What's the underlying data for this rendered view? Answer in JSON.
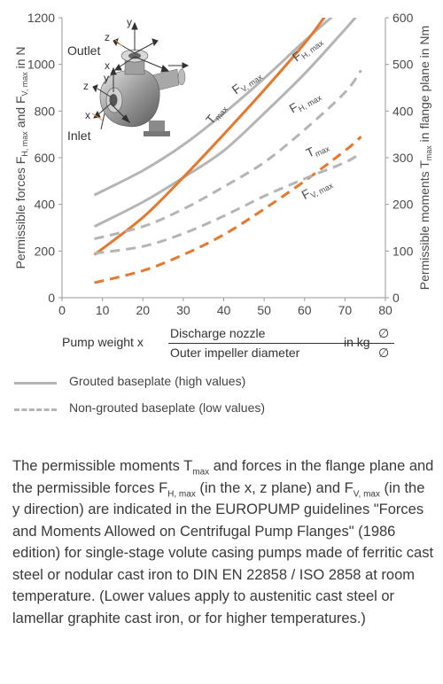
{
  "chart_data": {
    "type": "line",
    "xlim": [
      0,
      80
    ],
    "x_ticks": [
      0,
      10,
      20,
      30,
      40,
      50,
      60,
      70,
      80
    ],
    "y_left": {
      "lim": [
        0,
        1200
      ],
      "ticks": [
        0,
        200,
        400,
        600,
        800,
        1000,
        1200
      ]
    },
    "y_right": {
      "lim": [
        0,
        600
      ],
      "ticks": [
        0,
        100,
        200,
        300,
        400,
        500,
        600
      ]
    },
    "ylabel_left": {
      "main": "Permissible forces F",
      "sub1": "H, max",
      "mid": " and F",
      "sub2": "V, max",
      "end": " in N"
    },
    "ylabel_right": {
      "main": "Permissible moments T",
      "sub": "max",
      "end": " in flange plane in Nm"
    },
    "xlabel": {
      "prefix": "Pump weight  x",
      "numerator": "Discharge nozzle",
      "denominator": "Outer impeller diameter",
      "symbol_top": "∅",
      "symbol_bottom": "∅",
      "unit": "in kg"
    },
    "series": [
      {
        "group": "grouted",
        "label_main": "F",
        "label_sub": "V, max",
        "color": "#b5b5b5",
        "dash": false,
        "axis": "left",
        "x": [
          8,
          20,
          30,
          40,
          50,
          60,
          68,
          75
        ],
        "y": [
          440,
          545,
          655,
          790,
          940,
          1100,
          1220,
          1300
        ]
      },
      {
        "group": "grouted",
        "label_main": "F",
        "label_sub": "H, max",
        "color": "#b5b5b5",
        "dash": false,
        "axis": "left",
        "x": [
          8,
          20,
          30,
          40,
          50,
          60,
          70,
          73
        ],
        "y": [
          305,
          410,
          515,
          630,
          790,
          960,
          1150,
          1210
        ]
      },
      {
        "group": "grouted",
        "label_main": "T",
        "label_sub": "max",
        "color": "#e8772e",
        "dash": false,
        "axis": "right",
        "x": [
          8,
          20,
          30,
          40,
          50,
          60,
          65
        ],
        "y": [
          92,
          172,
          258,
          350,
          445,
          545,
          602
        ]
      },
      {
        "group": "non-grouted",
        "label_main": "F",
        "label_sub": "H, max",
        "color": "#b5b5b5",
        "dash": true,
        "axis": "left",
        "x": [
          8,
          20,
          30,
          40,
          50,
          60,
          70,
          74
        ],
        "y": [
          252,
          305,
          380,
          475,
          580,
          720,
          880,
          975
        ]
      },
      {
        "group": "non-grouted",
        "label_main": "T",
        "label_sub": "max",
        "color": "#e8772e",
        "dash": true,
        "axis": "right",
        "x": [
          8,
          20,
          30,
          40,
          50,
          60,
          70,
          74
        ],
        "y": [
          32,
          58,
          92,
          135,
          190,
          250,
          315,
          345
        ]
      },
      {
        "group": "non-grouted",
        "label_main": "F",
        "label_sub": "V, max",
        "color": "#b5b5b5",
        "dash": true,
        "axis": "left",
        "x": [
          8,
          20,
          30,
          40,
          50,
          60,
          70,
          74
        ],
        "y": [
          190,
          220,
          275,
          350,
          435,
          510,
          580,
          620
        ]
      }
    ],
    "curve_labels": [
      {
        "main": "F",
        "sub": "V, max",
        "x": 43,
        "y": 870,
        "angle": -36,
        "color": "#4a4a4a"
      },
      {
        "main": "F",
        "sub": "H, max",
        "x": 58,
        "y": 1010,
        "angle": -38,
        "color": "#4a4a4a"
      },
      {
        "main": "T",
        "sub": "max",
        "x": 37,
        "y": 740,
        "angle": -50,
        "color": "#4a4a4a"
      },
      {
        "main": "F",
        "sub": "H, max",
        "x": 57,
        "y": 790,
        "angle": -30,
        "color": "#4a4a4a"
      },
      {
        "main": "T",
        "sub": "max",
        "x": 61,
        "y": 600,
        "angle": -25,
        "color": "#4a4a4a"
      },
      {
        "main": "F",
        "sub": "V, max",
        "x": 60,
        "y": 420,
        "angle": -28,
        "color": "#4a4a4a"
      }
    ],
    "pump_labels": {
      "outlet": "Outlet",
      "inlet": "Inlet",
      "x": "x",
      "y": "y",
      "z": "z"
    }
  },
  "legend": {
    "grouted": "Grouted baseplate (high values)",
    "non_grouted": "Non-grouted baseplate (low values)"
  },
  "caption": {
    "p1": "The permissible moments T",
    "s1": "max",
    "p2": " and forces in the flange plane and the permissible forces F",
    "s2": "H, max",
    "p3": " (in the x, z plane) and F",
    "s3": "V, max",
    "p4": " (in the y direction) are indicated in the EUROPUMP guidelines \"Forces and Moments Allowed on Centrifugal Pump Flanges\" (1986 edition) for single-stage volute casing pumps made of ferritic cast steel or nodular cast iron to DIN EN 22858 / ISO 2858 at room temperature. (Lower values apply to austenitic cast steel or lamellar graphite cast iron, or for higher temperatures.)"
  }
}
